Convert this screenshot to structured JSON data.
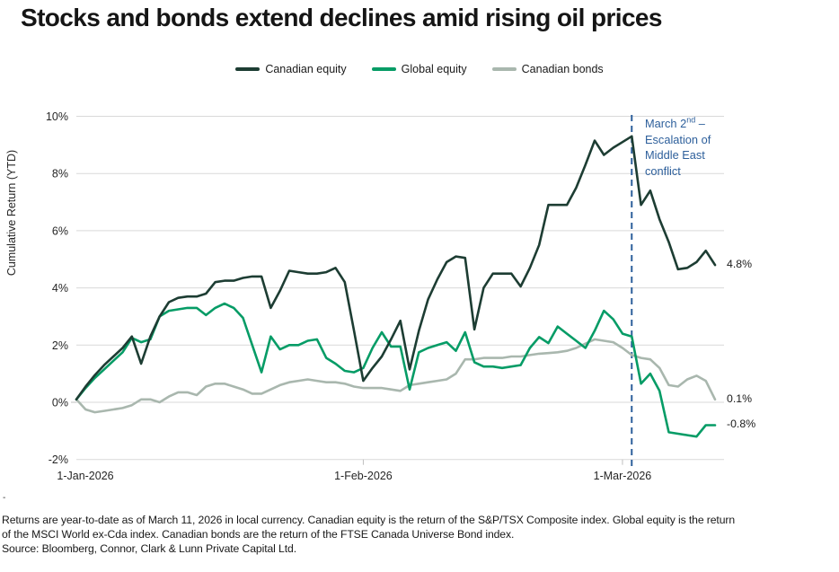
{
  "title": "Stocks and bonds extend declines amid rising oil prices",
  "chart_data": {
    "type": "line",
    "title": "Stocks and bonds extend declines amid rising oil prices",
    "x_axis": {
      "start_date": "1-Jan-2026",
      "end_date": "11-Mar-2026",
      "tick_labels": [
        "1-Jan-2026",
        "1-Feb-2026",
        "1-Mar-2026"
      ],
      "tick_day_index": [
        0,
        31,
        59
      ]
    },
    "y_axis": {
      "label": "Cumulative Return (YTD)",
      "tick_values": [
        -2,
        0,
        2,
        4,
        6,
        8,
        10
      ],
      "tick_suffix": "%",
      "min": -2,
      "max": 10,
      "step": 2,
      "grid": true
    },
    "legend_position": "top",
    "series": [
      {
        "name": "Canadian equity",
        "color": "#1d3d33",
        "values": [
          0.1,
          0.55,
          0.95,
          1.3,
          1.6,
          1.9,
          2.3,
          1.35,
          2.3,
          3.0,
          3.5,
          3.65,
          3.7,
          3.7,
          3.8,
          4.2,
          4.25,
          4.25,
          4.35,
          4.4,
          4.4,
          3.3,
          3.9,
          4.6,
          4.55,
          4.5,
          4.5,
          4.55,
          4.7,
          4.2,
          2.5,
          0.75,
          1.2,
          1.6,
          2.2,
          2.85,
          1.15,
          2.5,
          3.6,
          4.3,
          4.9,
          5.1,
          5.05,
          2.55,
          4.0,
          4.5,
          4.5,
          4.5,
          4.05,
          4.7,
          5.5,
          6.9,
          6.9,
          6.9,
          7.5,
          8.3,
          9.15,
          8.65,
          8.9,
          9.1,
          9.3,
          6.9,
          7.4,
          6.4,
          5.6,
          4.65,
          4.7,
          4.9,
          5.3,
          4.8
        ]
      },
      {
        "name": "Global equity",
        "color": "#069c66",
        "values": [
          0.1,
          0.5,
          0.85,
          1.15,
          1.45,
          1.75,
          2.25,
          2.1,
          2.2,
          3.0,
          3.2,
          3.25,
          3.3,
          3.3,
          3.05,
          3.3,
          3.45,
          3.3,
          2.95,
          2.0,
          1.05,
          2.3,
          1.85,
          2.0,
          2.0,
          2.15,
          2.2,
          1.55,
          1.35,
          1.1,
          1.05,
          1.2,
          1.9,
          2.45,
          1.95,
          1.95,
          0.45,
          1.75,
          1.9,
          2.0,
          2.1,
          1.8,
          2.45,
          1.4,
          1.25,
          1.25,
          1.2,
          1.25,
          1.3,
          1.9,
          2.28,
          2.07,
          2.65,
          2.4,
          2.15,
          1.9,
          2.5,
          3.2,
          2.9,
          2.4,
          2.3,
          0.65,
          1.0,
          0.4,
          -1.05,
          -1.1,
          -1.15,
          -1.2,
          -0.8,
          -0.8
        ]
      },
      {
        "name": "Canadian bonds",
        "color": "#a9b7ae",
        "values": [
          0.1,
          -0.25,
          -0.35,
          -0.3,
          -0.25,
          -0.2,
          -0.1,
          0.1,
          0.1,
          0.0,
          0.2,
          0.35,
          0.35,
          0.25,
          0.55,
          0.65,
          0.65,
          0.55,
          0.45,
          0.3,
          0.3,
          0.45,
          0.6,
          0.7,
          0.75,
          0.8,
          0.75,
          0.7,
          0.7,
          0.65,
          0.55,
          0.5,
          0.5,
          0.5,
          0.45,
          0.4,
          0.6,
          0.65,
          0.7,
          0.75,
          0.8,
          1.0,
          1.5,
          1.5,
          1.55,
          1.55,
          1.55,
          1.6,
          1.6,
          1.65,
          1.7,
          1.72,
          1.75,
          1.8,
          1.9,
          2.05,
          2.2,
          2.15,
          2.1,
          1.9,
          1.65,
          1.55,
          1.5,
          1.2,
          0.6,
          0.55,
          0.8,
          0.93,
          0.75,
          0.1
        ]
      }
    ],
    "annotation": {
      "line1_pre": "March 2",
      "line1_sup": "nd",
      "line1_post": " –",
      "line2": "Escalation of",
      "line3": "Middle East",
      "line4": "conflict",
      "day_index": 60,
      "color": "#2d5f9b",
      "line_style": "dashed"
    },
    "end_labels": [
      {
        "text": "4.8%",
        "value": 4.8
      },
      {
        "text": "0.1%",
        "value": 0.1
      },
      {
        "text": "-0.8%",
        "value": -0.8
      }
    ]
  },
  "footnote": {
    "line1": "Returns are year-to-date as of March 11, 2026 in local currency. Canadian equity is the return of the S&P/TSX Composite index. Global equity is the return",
    "line2": "of the MSCI World ex-Cda index. Canadian bonds are the return of the FTSE Canada Universe Bond index.",
    "line3": "Source: Bloomberg, Connor, Clark & Lunn Private Capital Ltd."
  },
  "stray_mark": "-"
}
